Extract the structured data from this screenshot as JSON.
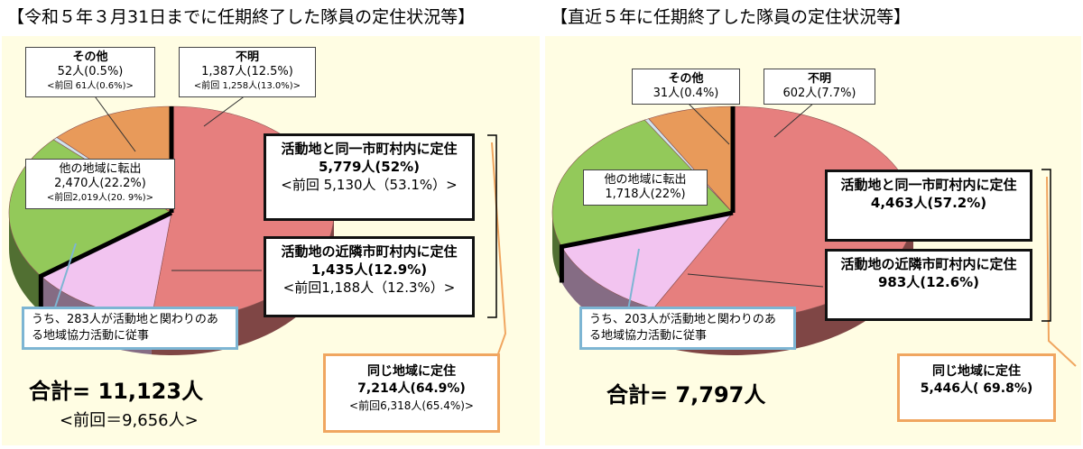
{
  "chart_data": [
    {
      "type": "pie",
      "title": "【令和５年３月31日までに任期終了した隊員の定住状況等】",
      "slices": [
        {
          "label": "活動地と同一市町村内に定住",
          "count": "5,779人",
          "percent": 52.0,
          "value": 5779,
          "prev": "<前回 5,130人（53.1%）>",
          "color": "#e67f7e"
        },
        {
          "label": "活動地の近隣市町村内に定住",
          "count": "1,435人",
          "percent": 12.9,
          "value": 1435,
          "prev": "<前回1,188人（12.3%）>",
          "color": "#f2c4f0"
        },
        {
          "label": "他の地域に転出",
          "count": "2,470人",
          "percent": 22.2,
          "value": 2470,
          "prev": "<前回2,019人(20. 9%)>",
          "color": "#93c95a"
        },
        {
          "label": "その他",
          "count": "52人",
          "percent": 0.5,
          "value": 52,
          "prev": "<前回 61人(0.6%)>",
          "color": "#cfe3ee"
        },
        {
          "label": "不明",
          "count": "1,387人",
          "percent": 12.5,
          "value": 1387,
          "prev": "<前回 1,258人(13.0%)>",
          "color": "#e89a5a"
        }
      ],
      "note": "うち、283人が活動地と関わりのある地域協力活動に従事",
      "same_region": {
        "label": "同じ地域に定住",
        "count": "7,214人",
        "percent": "(64.9%)",
        "prev": "<前回6,318人(65.4%)>"
      },
      "total_label": "合計=",
      "total_value": "11,123人",
      "total_prev": "<前回＝9,656人>"
    },
    {
      "type": "pie",
      "title": "【直近５年に任期終了した隊員の定住状況等】",
      "slices": [
        {
          "label": "活動地と同一市町村内に定住",
          "count": "4,463人",
          "percent": 57.2,
          "value": 4463,
          "color": "#e67f7e"
        },
        {
          "label": "活動地の近隣市町村内に定住",
          "count": "983人",
          "percent": 12.6,
          "value": 983,
          "color": "#f2c4f0"
        },
        {
          "label": "他の地域に転出",
          "count": "1,718人",
          "percent": 22.0,
          "value": 1718,
          "color": "#93c95a"
        },
        {
          "label": "その他",
          "count": "31人",
          "percent": 0.4,
          "value": 31,
          "color": "#cfe3ee"
        },
        {
          "label": "不明",
          "count": "602人",
          "percent": 7.7,
          "value": 602,
          "color": "#e89a5a"
        }
      ],
      "note": "うち、203人が活動地と関わりのある地域協力活動に従事",
      "same_region": {
        "label": "同じ地域に定住",
        "count": "5,446人",
        "percent": "( 69.8%)"
      },
      "total_label": "合計=",
      "total_value": "7,797人"
    }
  ]
}
